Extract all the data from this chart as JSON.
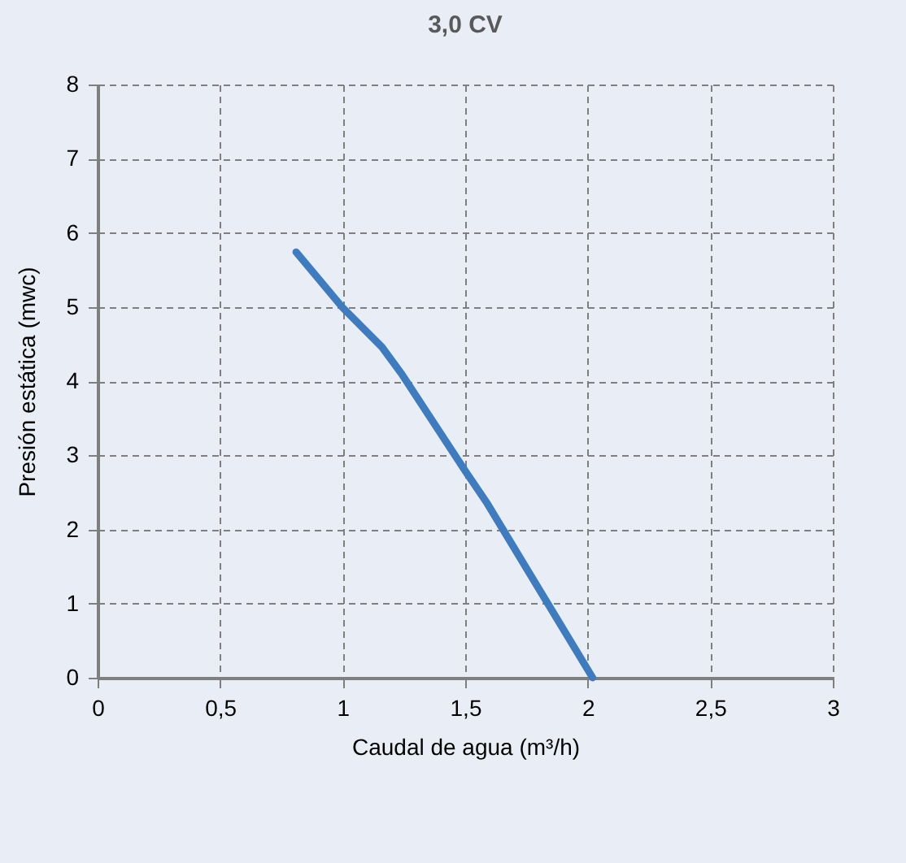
{
  "chart_data": {
    "type": "line",
    "title": "3,0 CV",
    "xlabel": "Caudal de agua (m³/h)",
    "ylabel": "Presión estática (mwc)",
    "x": [
      0.81,
      1.0,
      1.16,
      1.24,
      1.5,
      1.59,
      2.02
    ],
    "series": [
      {
        "color": "#3f7bbf",
        "values": [
          5.74,
          4.99,
          4.46,
          4.1,
          2.79,
          2.35,
          0
        ]
      }
    ],
    "xlim": [
      0,
      3
    ],
    "xticks": [
      0,
      {
        "value": 0.5,
        "label": "0,5"
      },
      1,
      {
        "value": 1.5,
        "label": "1,5"
      },
      2,
      {
        "value": 2.5,
        "label": "2,5"
      },
      3
    ],
    "ylim": [
      0,
      8
    ],
    "yticks": [
      0,
      1,
      2,
      3,
      4,
      5,
      6,
      7,
      8
    ],
    "grid": true,
    "line_style": "solid",
    "marker": "none",
    "legend": false
  }
}
